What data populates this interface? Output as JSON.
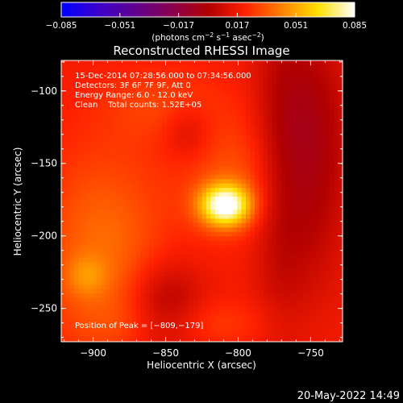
{
  "chart_data": {
    "type": "heatmap",
    "title": "Reconstructed RHESSI Image",
    "xlabel": "Heliocentric X (arcsec)",
    "ylabel": "Heliocentric Y (arcsec)",
    "xlim": [
      -922,
      -728
    ],
    "ylim": [
      -273,
      -79
    ],
    "x_ticks": [
      -900,
      -850,
      -800,
      -750
    ],
    "y_ticks": [
      -100,
      -150,
      -200,
      -250
    ],
    "x_tick_labels": [
      "−900",
      "−850",
      "−800",
      "−750"
    ],
    "y_tick_labels": [
      "−100",
      "−150",
      "−200",
      "−250"
    ],
    "colorbar": {
      "range": [
        -0.085,
        0.085
      ],
      "ticks": [
        -0.085,
        -0.051,
        -0.017,
        0.017,
        0.051,
        0.085
      ],
      "tick_labels": [
        "−0.085",
        "−0.051",
        "−0.017",
        "0.017",
        "0.051",
        "0.085"
      ],
      "unit_label": "(photons cm^-2 s^-1 asec^-2)",
      "colors": [
        "#0000ff",
        "#3a00cc",
        "#600090",
        "#8a0050",
        "#b00000",
        "#ff2000",
        "#ff8000",
        "#ffe000",
        "#ffffff"
      ]
    },
    "background_value": 0.018,
    "sources": [
      {
        "x": -809,
        "y": -179,
        "amp": 0.068,
        "sx": 12,
        "sy": 10
      },
      {
        "x": -800,
        "y": -160,
        "amp": 0.014,
        "sx": 28,
        "sy": 28
      },
      {
        "x": -893,
        "y": -210,
        "amp": 0.02,
        "sx": 30,
        "sy": 50
      },
      {
        "x": -905,
        "y": -228,
        "amp": 0.014,
        "sx": 10,
        "sy": 10
      },
      {
        "x": -850,
        "y": -110,
        "amp": 0.01,
        "sx": 30,
        "sy": 18
      },
      {
        "x": -830,
        "y": -260,
        "amp": 0.01,
        "sx": 40,
        "sy": 12
      },
      {
        "x": -770,
        "y": -150,
        "amp": -0.018,
        "sx": 14,
        "sy": 80
      },
      {
        "x": -850,
        "y": -250,
        "amp": -0.022,
        "sx": 18,
        "sy": 22
      },
      {
        "x": -835,
        "y": -128,
        "amp": -0.012,
        "sx": 12,
        "sy": 14
      },
      {
        "x": -745,
        "y": -140,
        "amp": -0.02,
        "sx": 16,
        "sy": 60
      }
    ],
    "annotations": [
      "15-Dec-2014 07:28:56.000 to 07:34:56.000",
      "Detectors: 3F 6F 7F 9F, Att 0",
      "Energy Range: 6.0 - 12.0 keV",
      "Clean    Total counts: 1.52E+05"
    ],
    "peak_label": "Position of Peak = [−809,−179]",
    "peak": {
      "x": -809,
      "y": -179
    }
  },
  "footer": {
    "timestamp": "20-May-2022 14:49"
  }
}
